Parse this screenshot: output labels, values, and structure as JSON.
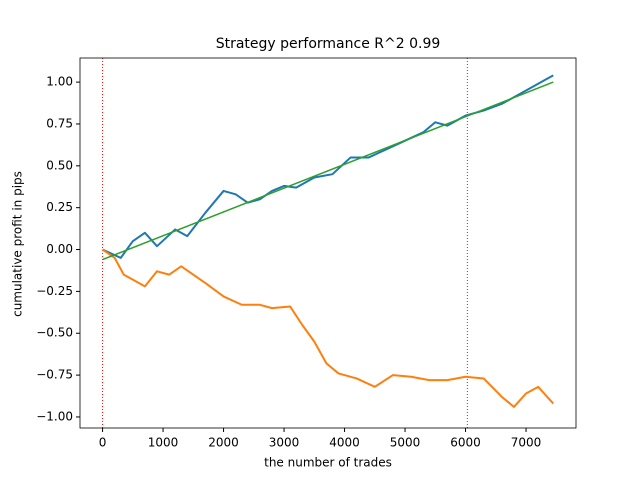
{
  "chart_data": {
    "type": "line",
    "title": "Strategy performance R^2 0.99",
    "xlabel": "the number of trades",
    "ylabel": "cumulative profit in pips",
    "xlim": [
      -373,
      7826
    ],
    "ylim": [
      -1.066,
      1.144
    ],
    "xticks": [
      0,
      1000,
      2000,
      3000,
      4000,
      5000,
      6000,
      7000
    ],
    "yticks": [
      {
        "value": -1,
        "label": "−1.00"
      },
      {
        "value": -0.75,
        "label": "−0.75"
      },
      {
        "value": -0.5,
        "label": "−0.50"
      },
      {
        "value": -0.25,
        "label": "−0.25"
      },
      {
        "value": 0,
        "label": "0.00"
      },
      {
        "value": 0.25,
        "label": "0.25"
      },
      {
        "value": 0.5,
        "label": "0.50"
      },
      {
        "value": 0.75,
        "label": "0.75"
      },
      {
        "value": 1,
        "label": "1.00"
      }
    ],
    "series": [
      {
        "color": "#1f77b4",
        "x": [
          0,
          300,
          500,
          700,
          900,
          1200,
          1400,
          1700,
          2000,
          2200,
          2400,
          2600,
          2800,
          3000,
          3200,
          3500,
          3800,
          4100,
          4400,
          4700,
          5000,
          5300,
          5500,
          5700,
          6000,
          6300,
          6600,
          6900,
          7100,
          7300,
          7450
        ],
        "values": [
          0,
          -0.05,
          0.05,
          0.1,
          0.02,
          0.12,
          0.08,
          0.22,
          0.35,
          0.33,
          0.28,
          0.3,
          0.35,
          0.38,
          0.37,
          0.43,
          0.45,
          0.55,
          0.55,
          0.6,
          0.65,
          0.7,
          0.76,
          0.74,
          0.8,
          0.83,
          0.87,
          0.93,
          0.97,
          1.01,
          1.04
        ]
      },
      {
        "color": "#ff7f0e",
        "x": [
          0,
          200,
          350,
          500,
          700,
          900,
          1100,
          1300,
          1500,
          1700,
          2000,
          2300,
          2600,
          2800,
          3100,
          3300,
          3500,
          3700,
          3900,
          4200,
          4500,
          4800,
          5100,
          5400,
          5700,
          6000,
          6300,
          6600,
          6800,
          7000,
          7200,
          7450
        ],
        "values": [
          0,
          -0.05,
          -0.15,
          -0.18,
          -0.22,
          -0.13,
          -0.15,
          -0.1,
          -0.15,
          -0.2,
          -0.28,
          -0.33,
          -0.33,
          -0.35,
          -0.34,
          -0.45,
          -0.55,
          -0.68,
          -0.74,
          -0.77,
          -0.82,
          -0.75,
          -0.76,
          -0.78,
          -0.78,
          -0.76,
          -0.77,
          -0.88,
          -0.94,
          -0.86,
          -0.82,
          -0.92
        ]
      },
      {
        "color": "#2ca02c",
        "x": [
          0,
          7450
        ],
        "values": [
          -0.06,
          1.0
        ]
      }
    ],
    "vlines": [
      {
        "x": 0,
        "color": "#ff0000"
      },
      {
        "x": 6030,
        "color": "#7b2fa8"
      }
    ]
  }
}
